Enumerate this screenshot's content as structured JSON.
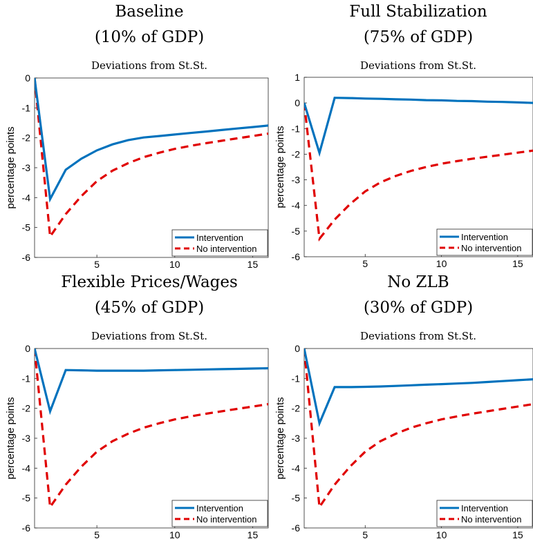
{
  "colors": {
    "intervention": "#0072BD",
    "no_intervention": "#E00000"
  },
  "chart_data": [
    {
      "type": "line",
      "title": "Baseline",
      "title2": "(10% of GDP)",
      "subtitle": "Deviations from St.St.",
      "ylabel": "percentage points",
      "xlim": [
        1,
        16
      ],
      "ylim": [
        -6,
        0
      ],
      "xticks": [
        5,
        10,
        15
      ],
      "yticks": [
        0,
        -1,
        -2,
        -3,
        -4,
        -5,
        -6
      ],
      "ytick_labels": [
        "0",
        "-1",
        "-2",
        "-3",
        "-4",
        "-5",
        "-6"
      ],
      "legend": "bottom-right",
      "x": [
        1,
        2,
        3,
        4,
        5,
        6,
        7,
        8,
        9,
        10,
        11,
        12,
        13,
        14,
        15,
        16
      ],
      "series": [
        {
          "name": "Intervention",
          "style": "solid",
          "values": [
            0,
            -4.05,
            -3.07,
            -2.7,
            -2.42,
            -2.22,
            -2.08,
            -1.99,
            -1.94,
            -1.89,
            -1.84,
            -1.79,
            -1.74,
            -1.69,
            -1.64,
            -1.59
          ]
        },
        {
          "name": "No intervention",
          "style": "dashed",
          "values": [
            0,
            -5.3,
            -4.55,
            -3.95,
            -3.45,
            -3.1,
            -2.85,
            -2.65,
            -2.5,
            -2.37,
            -2.27,
            -2.18,
            -2.1,
            -2.02,
            -1.94,
            -1.86
          ]
        }
      ]
    },
    {
      "type": "line",
      "title": "Full Stabilization",
      "title2": "(75% of GDP)",
      "subtitle": "Deviations from St.St.",
      "ylabel": "percentage points",
      "xlim": [
        1,
        16
      ],
      "ylim": [
        -6,
        1
      ],
      "xticks": [
        5,
        10,
        15
      ],
      "yticks": [
        1,
        0,
        -1,
        -2,
        -3,
        -4,
        -5,
        -6
      ],
      "ytick_labels": [
        "1",
        "0",
        "-1",
        "-2",
        "-3",
        "-4",
        "-5",
        "-6"
      ],
      "legend": "bottom-right",
      "x": [
        1,
        2,
        3,
        4,
        5,
        6,
        7,
        8,
        9,
        10,
        11,
        12,
        13,
        14,
        15,
        16
      ],
      "series": [
        {
          "name": "Intervention",
          "style": "solid",
          "values": [
            0,
            -1.95,
            0.2,
            0.19,
            0.17,
            0.16,
            0.14,
            0.13,
            0.11,
            0.1,
            0.08,
            0.07,
            0.05,
            0.04,
            0.02,
            0.0
          ]
        },
        {
          "name": "No intervention",
          "style": "dashed",
          "values": [
            0,
            -5.3,
            -4.55,
            -3.95,
            -3.45,
            -3.1,
            -2.85,
            -2.65,
            -2.5,
            -2.37,
            -2.27,
            -2.18,
            -2.1,
            -2.02,
            -1.94,
            -1.86
          ]
        }
      ]
    },
    {
      "type": "line",
      "title": "Flexible Prices/Wages",
      "title2": "(45% of GDP)",
      "subtitle": "Deviations from St.St.",
      "ylabel": "percentage points",
      "xlim": [
        1,
        16
      ],
      "ylim": [
        -6,
        0
      ],
      "xticks": [
        5,
        10,
        15
      ],
      "yticks": [
        0,
        -1,
        -2,
        -3,
        -4,
        -5,
        -6
      ],
      "ytick_labels": [
        "0",
        "-1",
        "-2",
        "-3",
        "-4",
        "-5",
        "-6"
      ],
      "legend": "bottom-right",
      "x": [
        1,
        2,
        3,
        4,
        5,
        6,
        7,
        8,
        9,
        10,
        11,
        12,
        13,
        14,
        15,
        16
      ],
      "series": [
        {
          "name": "Intervention",
          "style": "solid",
          "values": [
            0,
            -2.1,
            -0.72,
            -0.73,
            -0.74,
            -0.74,
            -0.74,
            -0.74,
            -0.73,
            -0.72,
            -0.71,
            -0.7,
            -0.69,
            -0.68,
            -0.67,
            -0.66
          ]
        },
        {
          "name": "No intervention",
          "style": "dashed",
          "values": [
            0,
            -5.3,
            -4.55,
            -3.95,
            -3.45,
            -3.1,
            -2.85,
            -2.65,
            -2.5,
            -2.37,
            -2.27,
            -2.18,
            -2.1,
            -2.02,
            -1.94,
            -1.86
          ]
        }
      ]
    },
    {
      "type": "line",
      "title": "No ZLB",
      "title2": "(30% of GDP)",
      "subtitle": "Deviations from St.St.",
      "ylabel": "percentage points",
      "xlim": [
        1,
        16
      ],
      "ylim": [
        -6,
        0
      ],
      "xticks": [
        5,
        10,
        15
      ],
      "yticks": [
        0,
        -1,
        -2,
        -3,
        -4,
        -5,
        -6
      ],
      "ytick_labels": [
        "0",
        "-1",
        "-2",
        "-3",
        "-4",
        "-5",
        "-6"
      ],
      "legend": "bottom-right",
      "x": [
        1,
        2,
        3,
        4,
        5,
        6,
        7,
        8,
        9,
        10,
        11,
        12,
        13,
        14,
        15,
        16
      ],
      "series": [
        {
          "name": "Intervention",
          "style": "solid",
          "values": [
            0,
            -2.5,
            -1.29,
            -1.29,
            -1.28,
            -1.27,
            -1.25,
            -1.23,
            -1.21,
            -1.19,
            -1.17,
            -1.15,
            -1.12,
            -1.09,
            -1.06,
            -1.03
          ]
        },
        {
          "name": "No intervention",
          "style": "dashed",
          "values": [
            0,
            -5.3,
            -4.55,
            -3.95,
            -3.45,
            -3.1,
            -2.85,
            -2.65,
            -2.5,
            -2.37,
            -2.27,
            -2.18,
            -2.1,
            -2.02,
            -1.94,
            -1.86
          ]
        }
      ]
    }
  ]
}
